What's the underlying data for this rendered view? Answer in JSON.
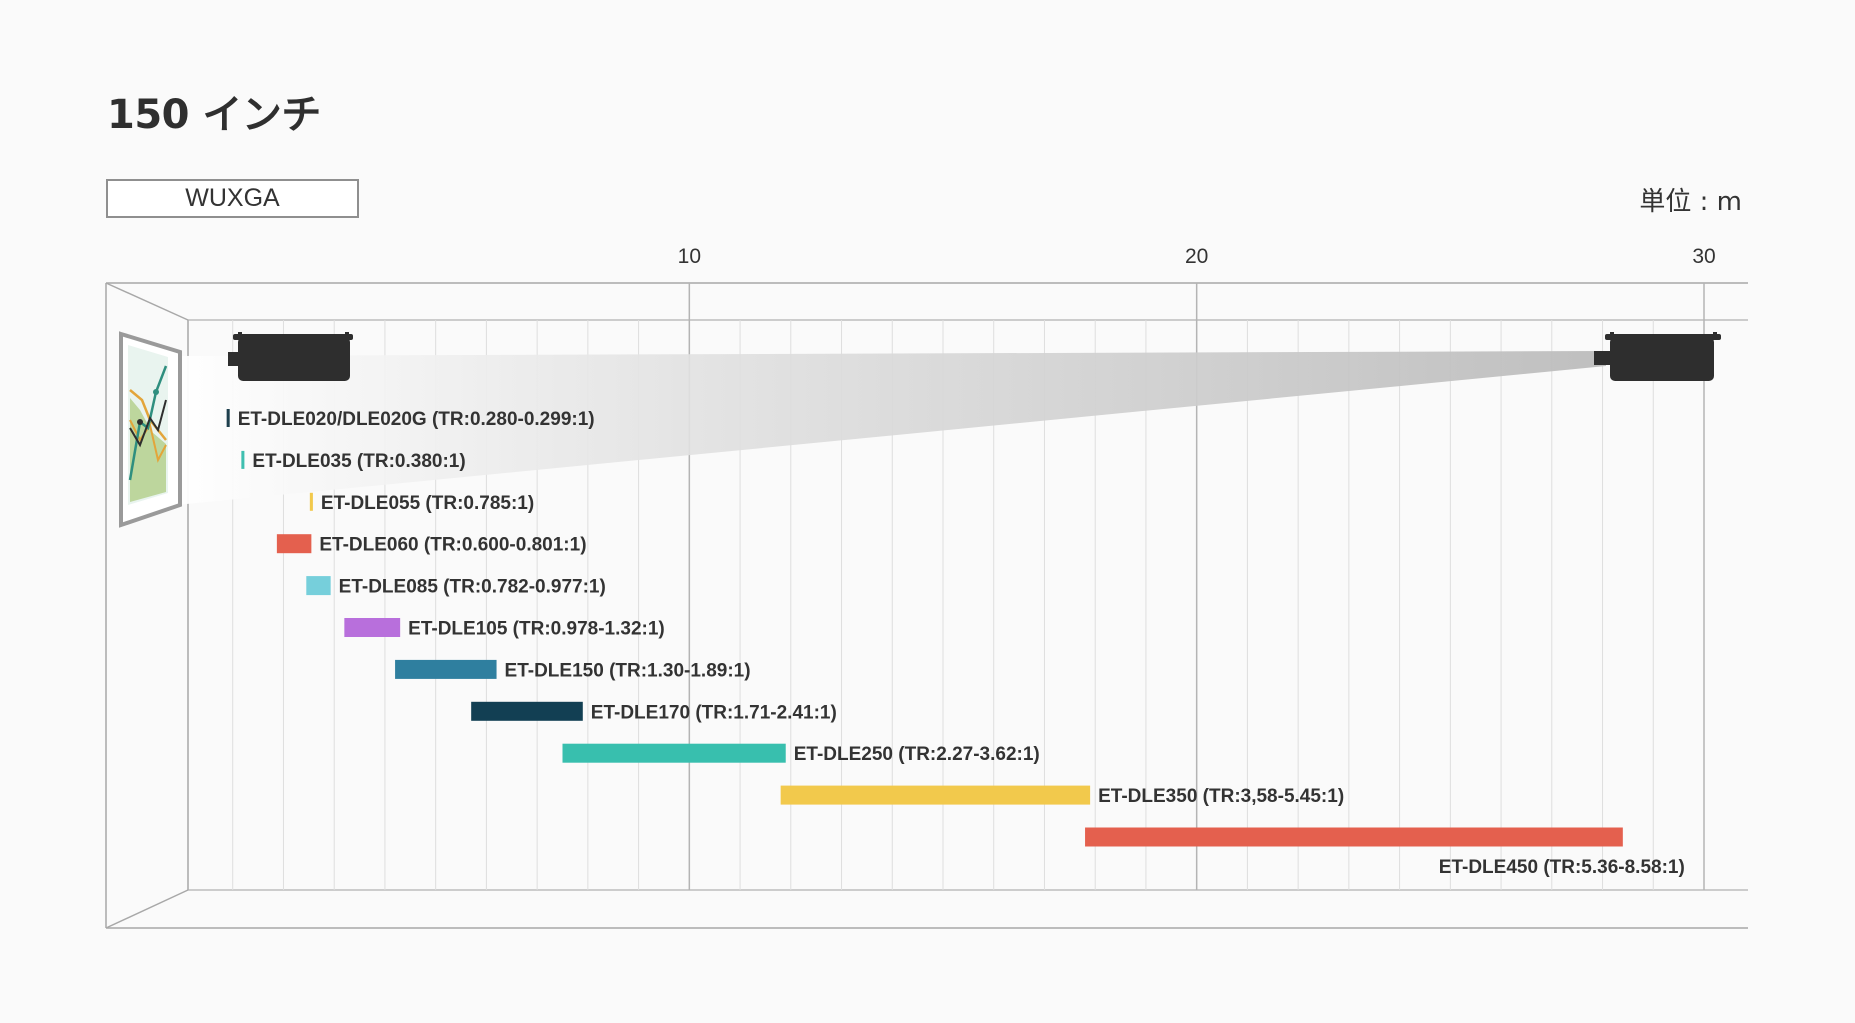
{
  "header": {
    "title": "150 インチ",
    "resolution": "WUXGA",
    "unit_label": "単位 : m"
  },
  "colors": {
    "grid_major": "#b4b4b4",
    "grid_minor": "#dedede",
    "frame": "#a0a0a0",
    "projector": "#2e2e2e"
  },
  "chart_data": {
    "type": "bar",
    "title": "150 インチ",
    "subtitle": "WUXGA",
    "xlabel": "単位 : m",
    "xlim": [
      0,
      30
    ],
    "xticks": [
      10,
      20,
      30
    ],
    "minor_step": 1,
    "series": [
      {
        "name": "ET-DLE020/DLE020G (TR:0.280-0.299:1)",
        "min": 0.88,
        "max": 0.94,
        "color": "#1e3f4d"
      },
      {
        "name": "ET-DLE035 (TR:0.380:1)",
        "min": 1.17,
        "max": 1.23,
        "color": "#3fbfb0"
      },
      {
        "name": "ET-DLE055 (TR:0.785:1)",
        "min": 2.52,
        "max": 2.58,
        "color": "#f2c94c"
      },
      {
        "name": "ET-DLE060 (TR:0.600-0.801:1)",
        "min": 1.87,
        "max": 2.55,
        "color": "#e4604e"
      },
      {
        "name": "ET-DLE085 (TR:0.782-0.977:1)",
        "min": 2.45,
        "max": 2.93,
        "color": "#76cfdb"
      },
      {
        "name": "ET-DLE105 (TR:0.978-1.32:1)",
        "min": 3.2,
        "max": 4.3,
        "color": "#b86fdc"
      },
      {
        "name": "ET-DLE150 (TR:1.30-1.89:1)",
        "min": 4.2,
        "max": 6.2,
        "color": "#2f7f9f"
      },
      {
        "name": "ET-DLE170 (TR:1.71-2.41:1)",
        "min": 5.7,
        "max": 7.9,
        "color": "#123f53"
      },
      {
        "name": "ET-DLE250 (TR:2.27-3.62:1)",
        "min": 7.5,
        "max": 11.9,
        "color": "#38bfae"
      },
      {
        "name": "ET-DLE350 (TR:3,58-5.45:1)",
        "min": 11.8,
        "max": 17.9,
        "color": "#f2c94c"
      },
      {
        "name": "ET-DLE450 (TR:5.36-8.58:1)",
        "min": 17.8,
        "max": 28.4,
        "color": "#e4604e",
        "label_pos": "below-right"
      }
    ]
  }
}
